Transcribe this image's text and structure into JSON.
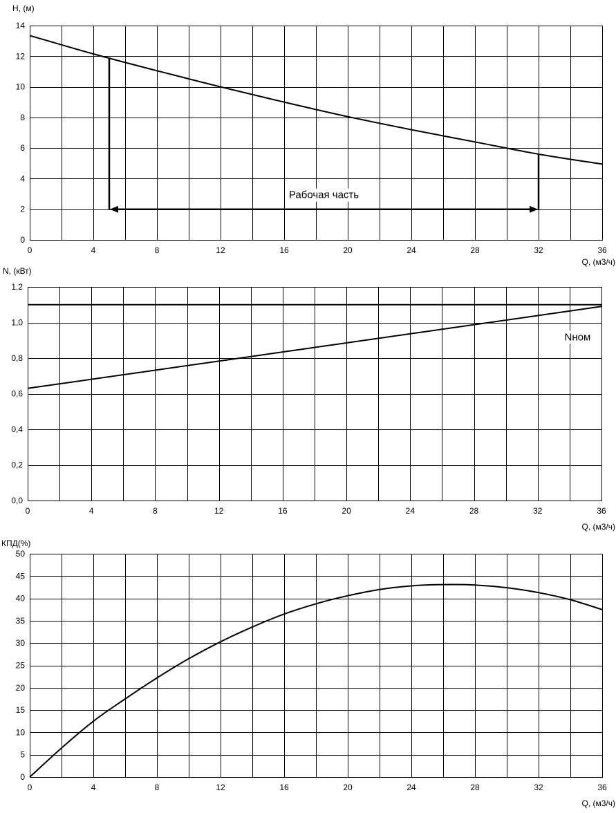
{
  "chart_data": [
    {
      "type": "line",
      "ylabel": "H, (м)",
      "xlabel": "Q, (м3/ч)",
      "xlim": [
        0,
        36
      ],
      "ylim": [
        0,
        14
      ],
      "x_ticks": [
        0,
        4,
        8,
        12,
        16,
        20,
        24,
        28,
        32,
        36
      ],
      "y_ticks": [
        "0",
        "2",
        "4",
        "6",
        "8",
        "10",
        "12",
        "14"
      ],
      "grid": true,
      "series": [
        {
          "x": [
            0,
            4,
            8,
            12,
            16,
            20,
            24,
            28,
            32,
            36
          ],
          "values": [
            13.35,
            12.15,
            11.05,
            10.0,
            9.0,
            8.05,
            7.2,
            6.4,
            5.6,
            4.95
          ]
        }
      ],
      "annotations": [
        {
          "text": "Рабочая часть",
          "range": [
            5,
            32
          ],
          "y": 2
        }
      ]
    },
    {
      "type": "line",
      "ylabel": "N, (кВт)",
      "xlabel": "Q, (м3/ч)",
      "xlim": [
        0,
        36
      ],
      "ylim": [
        0,
        1.2
      ],
      "x_ticks": [
        0,
        4,
        8,
        12,
        16,
        20,
        24,
        28,
        32,
        36
      ],
      "y_ticks": [
        "0,0",
        "0,2",
        "0,4",
        "0,6",
        "0,8",
        "1,0",
        "1,2"
      ],
      "grid": true,
      "series": [
        {
          "x": [
            0,
            36
          ],
          "values": [
            0.63,
            1.09
          ]
        },
        {
          "x": [
            0,
            36
          ],
          "values": [
            1.1,
            1.1
          ]
        }
      ],
      "annotations": [
        {
          "text": "Nном",
          "x": 34.5,
          "y": 0.9
        }
      ]
    },
    {
      "type": "line",
      "ylabel": "КПД(%)",
      "xlabel": "Q, (м3/ч)",
      "xlim": [
        0,
        36
      ],
      "ylim": [
        0,
        50
      ],
      "x_ticks": [
        0,
        4,
        8,
        12,
        16,
        20,
        24,
        28,
        32,
        36
      ],
      "y_ticks": [
        "0",
        "5",
        "10",
        "15",
        "20",
        "25",
        "30",
        "35",
        "40",
        "45",
        "50"
      ],
      "grid": true,
      "series": [
        {
          "x": [
            0,
            2,
            4,
            6,
            8,
            10,
            12,
            14,
            16,
            18,
            20,
            22,
            24,
            26,
            28,
            30,
            32,
            34,
            36
          ],
          "values": [
            0,
            6.5,
            12.5,
            17.5,
            22.2,
            26.5,
            30.3,
            33.6,
            36.5,
            38.8,
            40.6,
            42.0,
            42.8,
            43.1,
            43.0,
            42.4,
            41.3,
            39.7,
            37.5
          ]
        }
      ]
    }
  ]
}
